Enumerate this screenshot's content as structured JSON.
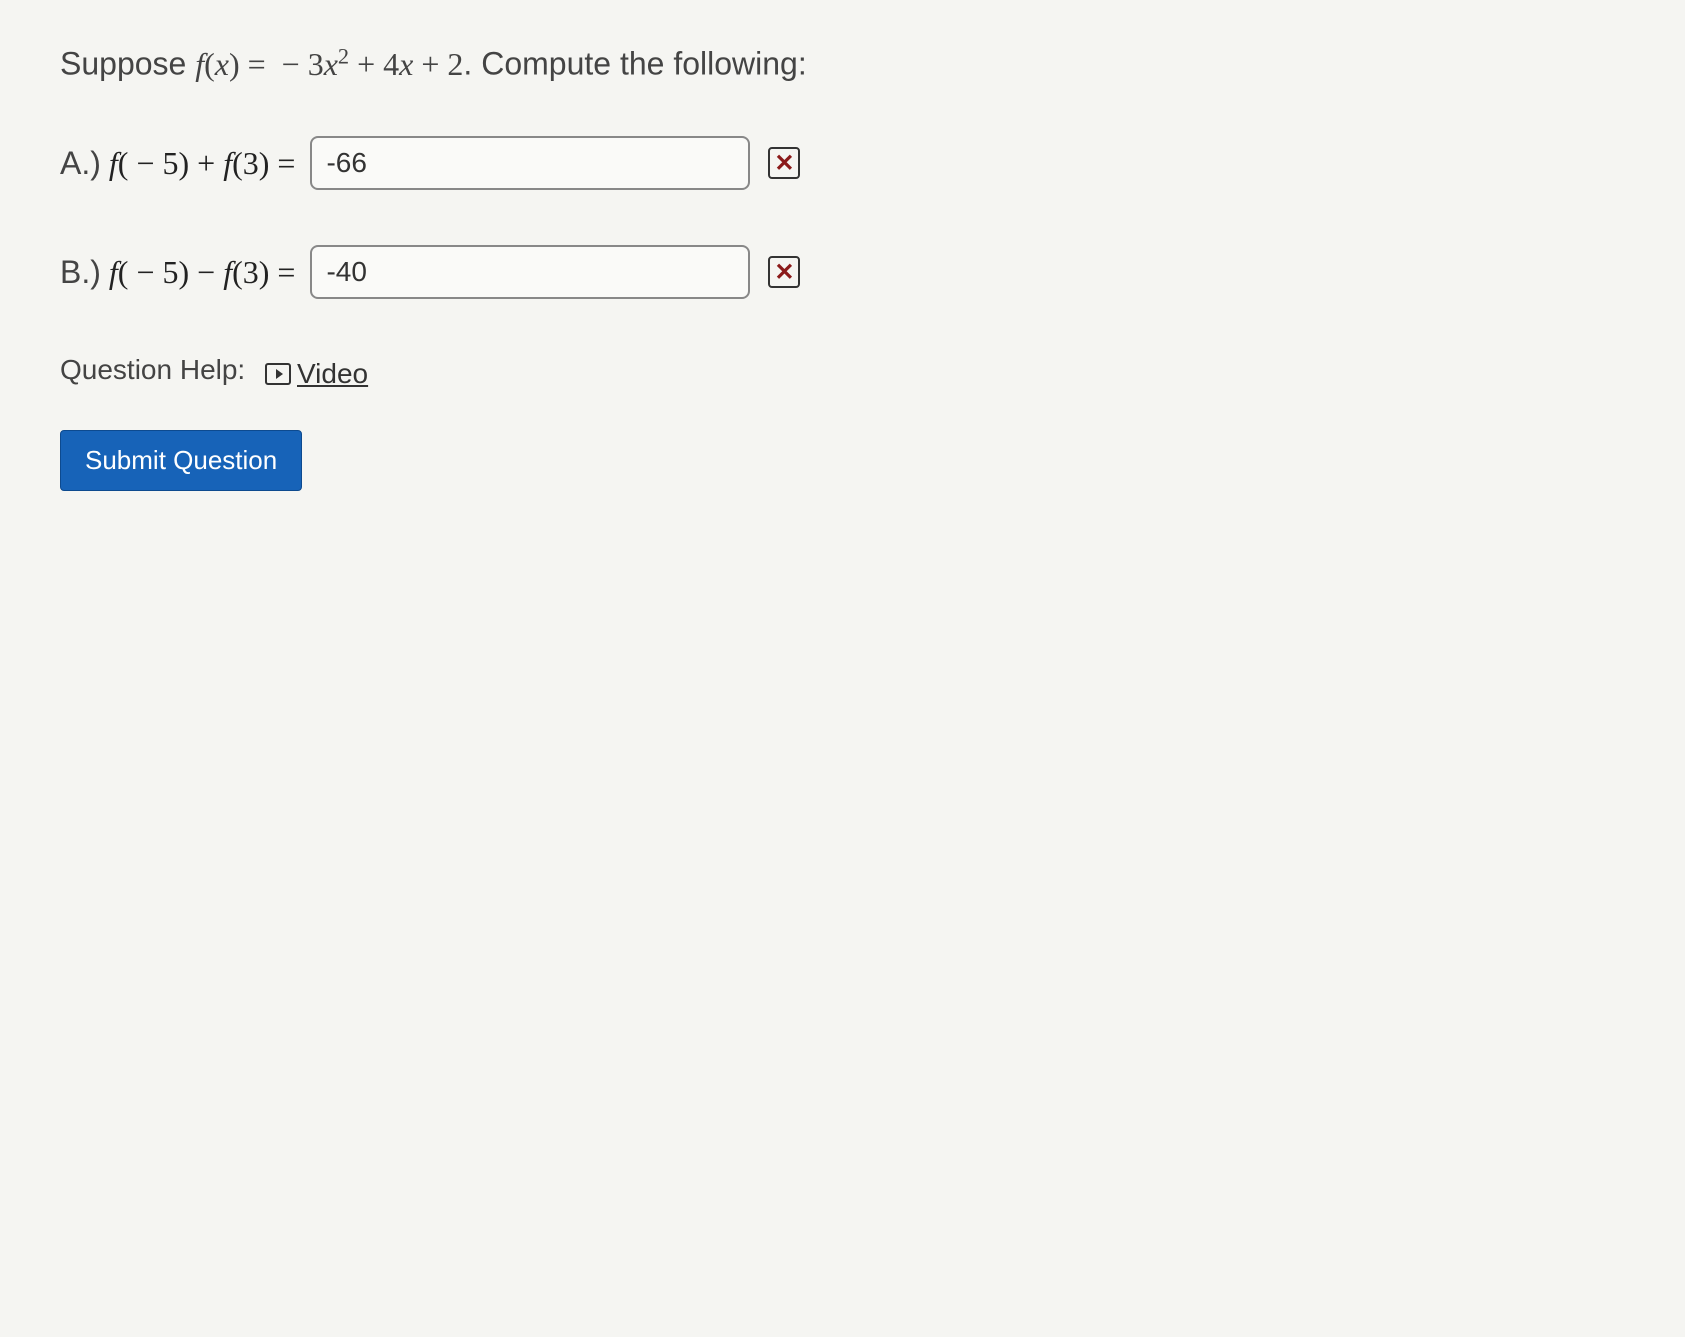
{
  "question": {
    "prompt_prefix": "Suppose ",
    "prompt_suffix": ". Compute the following:",
    "function_def": "f(x) = − 3x² + 4x + 2"
  },
  "parts": {
    "a": {
      "label": "A.)",
      "expression": "f( − 5) + f(3) =",
      "input_value": "-66",
      "feedback": "incorrect"
    },
    "b": {
      "label": "B.)",
      "expression": "f( − 5) − f(3) =",
      "input_value": "-40",
      "feedback": "incorrect"
    }
  },
  "help": {
    "label": "Question Help:",
    "video_label": "Video"
  },
  "submit": {
    "label": "Submit Question"
  },
  "colors": {
    "background": "#f5f5f2",
    "text": "#333",
    "input_border": "#888",
    "incorrect": "#8b1a1a",
    "button_bg": "#1763b8",
    "button_border": "#0d4a8f",
    "button_text": "#ffffff"
  }
}
